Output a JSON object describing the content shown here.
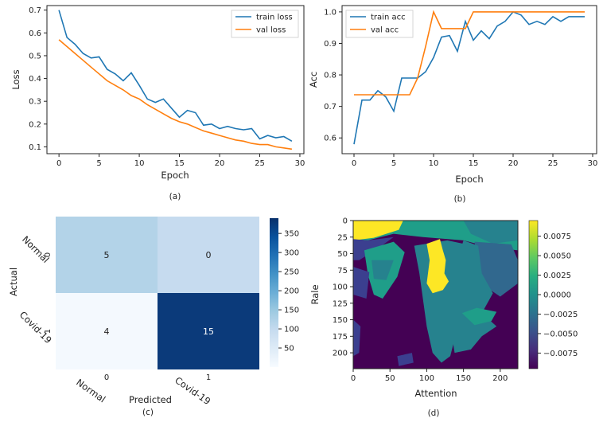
{
  "chart_data": [
    {
      "type": "line",
      "id": "a",
      "caption": "(a)",
      "xlabel": "Epoch",
      "ylabel": "Loss",
      "xlim": [
        -1.5,
        30.5
      ],
      "ylim": [
        0.07,
        0.72
      ],
      "xticks": [
        0,
        5,
        10,
        15,
        20,
        25,
        30
      ],
      "yticks": [
        0.1,
        0.2,
        0.3,
        0.4,
        0.5,
        0.6,
        0.7
      ],
      "ytick_labels": [
        "0.1",
        "0.2",
        "0.3",
        "0.4",
        "0.5",
        "0.6",
        "0.7"
      ],
      "legend": "top-right",
      "x": [
        0,
        1,
        2,
        3,
        4,
        5,
        6,
        7,
        8,
        9,
        10,
        11,
        12,
        13,
        14,
        15,
        16,
        17,
        18,
        19,
        20,
        21,
        22,
        23,
        24,
        25,
        26,
        27,
        28,
        29
      ],
      "series": [
        {
          "name": "train loss",
          "color": "#1f77b4",
          "values": [
            0.7,
            0.58,
            0.55,
            0.51,
            0.49,
            0.495,
            0.44,
            0.42,
            0.39,
            0.425,
            0.37,
            0.31,
            0.295,
            0.31,
            0.27,
            0.23,
            0.26,
            0.25,
            0.195,
            0.2,
            0.18,
            0.19,
            0.18,
            0.175,
            0.18,
            0.135,
            0.15,
            0.14,
            0.145,
            0.125
          ]
        },
        {
          "name": "val loss",
          "color": "#ff7f0e",
          "values": [
            0.57,
            0.54,
            0.51,
            0.48,
            0.45,
            0.42,
            0.39,
            0.37,
            0.35,
            0.325,
            0.31,
            0.285,
            0.265,
            0.245,
            0.225,
            0.21,
            0.2,
            0.185,
            0.17,
            0.16,
            0.15,
            0.14,
            0.13,
            0.125,
            0.115,
            0.11,
            0.11,
            0.1,
            0.095,
            0.09
          ]
        }
      ]
    },
    {
      "type": "line",
      "id": "b",
      "caption": "(b)",
      "xlabel": "Epoch",
      "ylabel": "Acc",
      "xlim": [
        -1.5,
        30.5
      ],
      "ylim": [
        0.55,
        1.02
      ],
      "xticks": [
        0,
        5,
        10,
        15,
        20,
        25,
        30
      ],
      "yticks": [
        0.6,
        0.7,
        0.8,
        0.9,
        1.0
      ],
      "ytick_labels": [
        "0.6",
        "0.7",
        "0.8",
        "0.9",
        "1.0"
      ],
      "legend": "top-left",
      "x": [
        0,
        1,
        2,
        3,
        4,
        5,
        6,
        7,
        8,
        9,
        10,
        11,
        12,
        13,
        14,
        15,
        16,
        17,
        18,
        19,
        20,
        21,
        22,
        23,
        24,
        25,
        26,
        27,
        28,
        29
      ],
      "series": [
        {
          "name": "train acc",
          "color": "#1f77b4",
          "values": [
            0.58,
            0.72,
            0.72,
            0.75,
            0.73,
            0.685,
            0.79,
            0.79,
            0.79,
            0.81,
            0.855,
            0.92,
            0.925,
            0.875,
            0.97,
            0.91,
            0.94,
            0.915,
            0.955,
            0.97,
            1.0,
            0.99,
            0.96,
            0.97,
            0.96,
            0.985,
            0.97,
            0.985,
            0.985,
            0.985
          ]
        },
        {
          "name": "val acc",
          "color": "#ff7f0e",
          "values": [
            0.737,
            0.737,
            0.737,
            0.737,
            0.737,
            0.737,
            0.737,
            0.737,
            0.79,
            0.89,
            1.0,
            0.947,
            0.947,
            0.947,
            0.947,
            1.0,
            1.0,
            1.0,
            1.0,
            1.0,
            1.0,
            1.0,
            1.0,
            1.0,
            1.0,
            1.0,
            1.0,
            1.0,
            1.0,
            1.0
          ]
        }
      ]
    },
    {
      "type": "heatmap",
      "id": "c",
      "caption": "(c)",
      "xlabel": "Predicted",
      "ylabel": "Actual",
      "row_tick_labels": [
        "0",
        "1"
      ],
      "row_class_labels": [
        "Normal",
        "Covid-19"
      ],
      "col_tick_labels": [
        "0",
        "1"
      ],
      "col_class_labels": [
        "Normal",
        "Covid-19"
      ],
      "values": [
        [
          5,
          0
        ],
        [
          4,
          15
        ]
      ],
      "cell_colors": [
        [
          "#b3d3e8",
          "#c6dbef"
        ],
        [
          "#f4f9fe",
          "#0b3a7a"
        ]
      ],
      "cell_text_colors": [
        [
          "#222222",
          "#222222"
        ],
        [
          "#222222",
          "#ffffff"
        ]
      ],
      "colorbar": {
        "min": 0,
        "max": 390,
        "ticks": [
          50,
          100,
          150,
          200,
          250,
          300,
          350
        ],
        "colors": [
          "#f7fbff",
          "#deebf7",
          "#c6dbef",
          "#9ecae1",
          "#6baed6",
          "#4292c6",
          "#2171b5",
          "#08519c",
          "#08306b"
        ]
      }
    },
    {
      "type": "heatmap",
      "id": "d",
      "caption": "(d)",
      "xlabel": "Attention",
      "ylabel": "Rale",
      "xlim": [
        0,
        224
      ],
      "ylim": [
        224,
        0
      ],
      "xticks": [
        0,
        50,
        100,
        150,
        200
      ],
      "yticks": [
        0,
        25,
        50,
        75,
        100,
        125,
        150,
        175,
        200
      ],
      "colorbar": {
        "min": -0.0095,
        "max": 0.0095,
        "ticks": [
          0.0075,
          0.005,
          0.0025,
          0.0,
          -0.0025,
          -0.005,
          -0.0075
        ],
        "tick_labels": [
          "0.0075",
          "0.0050",
          "0.0025",
          "0.0000",
          "−0.0025",
          "−0.0050",
          "−0.0075"
        ],
        "colors": [
          "#440154",
          "#472d7b",
          "#3b528b",
          "#2c728e",
          "#21918c",
          "#28ae80",
          "#5ec962",
          "#addc30",
          "#fde725"
        ]
      },
      "colors": {
        "dark": "#440154",
        "indigo": "#3b3f8f",
        "blue": "#31688e",
        "teal": "#26828e",
        "green": "#1f9e89",
        "lime": "#6ece58",
        "yellow": "#fde725"
      }
    }
  ]
}
